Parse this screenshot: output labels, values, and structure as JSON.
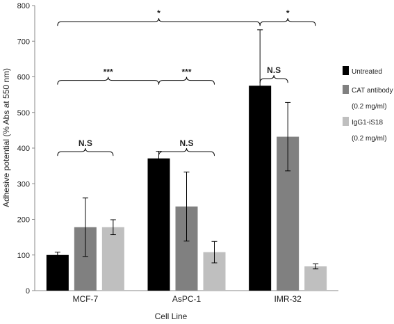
{
  "chart_data": {
    "type": "bar",
    "title": "",
    "xlabel": "Cell Line",
    "ylabel": "Adhesive potential (% Abs at 550 nm)",
    "ylim": [
      0,
      800
    ],
    "yticks": [
      0,
      100,
      200,
      300,
      400,
      500,
      600,
      700,
      800
    ],
    "categories": [
      "MCF-7",
      "AsPC-1",
      "IMR-32"
    ],
    "series": [
      {
        "name": "Untreated",
        "color": "#000000",
        "values": [
          100,
          371,
          575
        ],
        "errors": [
          8,
          20,
          157
        ]
      },
      {
        "name": "CAT antibody",
        "name_line2": "(0.2 mg/ml)",
        "color": "#808080",
        "values": [
          178,
          236,
          432
        ],
        "errors": [
          82,
          97,
          96
        ]
      },
      {
        "name": "IgG1-iS18",
        "name_line2": "(0.2 mg/ml)",
        "color": "#bfbfbf",
        "values": [
          178,
          108,
          68
        ],
        "errors": [
          21,
          30,
          7
        ]
      }
    ],
    "grid": false,
    "legend": "right",
    "annotations": [
      {
        "text": "*",
        "from": [
          "MCF-7",
          "Untreated"
        ],
        "to": [
          "IMR-32",
          "Untreated"
        ],
        "y": 755
      },
      {
        "text": "*",
        "from": [
          "IMR-32",
          "Untreated"
        ],
        "to": [
          "IMR-32",
          "IgG1-iS18"
        ],
        "y": 755
      },
      {
        "text": "***",
        "from": [
          "MCF-7",
          "Untreated"
        ],
        "to": [
          "AsPC-1",
          "Untreated"
        ],
        "y": 590
      },
      {
        "text": "***",
        "from": [
          "AsPC-1",
          "Untreated"
        ],
        "to": [
          "AsPC-1",
          "IgG1-iS18"
        ],
        "y": 590
      },
      {
        "text": "N.S",
        "from": [
          "MCF-7",
          "Untreated"
        ],
        "to": [
          "MCF-7",
          "IgG1-iS18"
        ],
        "y": 390
      },
      {
        "text": "N.S",
        "from": [
          "AsPC-1",
          "Untreated"
        ],
        "to": [
          "AsPC-1",
          "IgG1-iS18"
        ],
        "y": 390
      },
      {
        "text": "N.S",
        "from": [
          "IMR-32",
          "Untreated"
        ],
        "to": [
          "IMR-32",
          "CAT antibody"
        ],
        "y": 595
      }
    ]
  }
}
